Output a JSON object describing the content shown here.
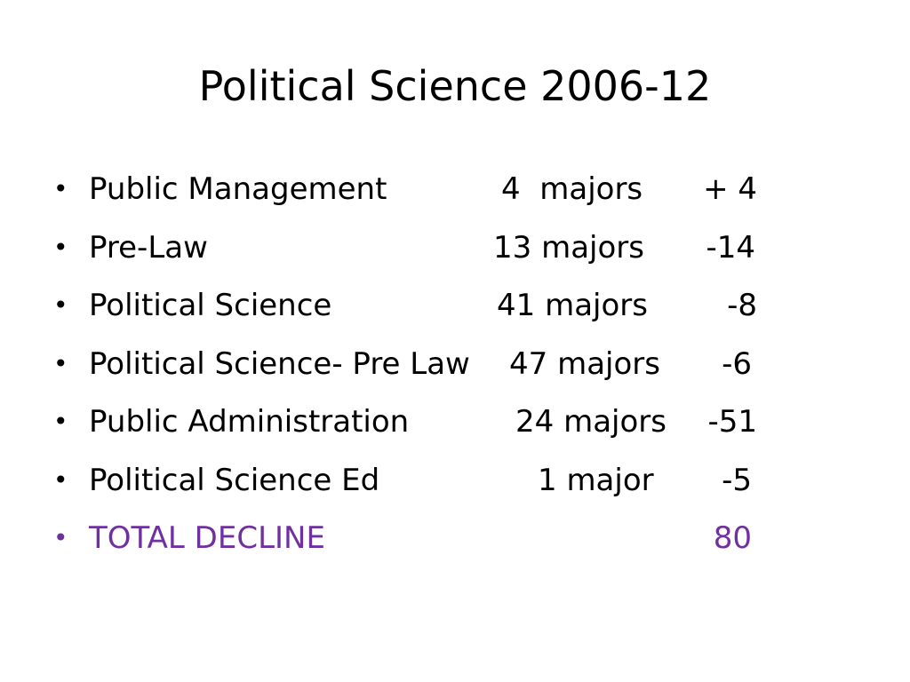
{
  "slide": {
    "title": "Political Science 2006-12",
    "bullet_symbol": "•",
    "rows": [
      {
        "name": "Public Management",
        "count": "4  majors",
        "change": "+ 4"
      },
      {
        "name": "Pre-Law",
        "count": "13 majors",
        "change": "-14"
      },
      {
        "name": "Political Science",
        "count": "41 majors",
        "change": "-8"
      },
      {
        "name": "Political Science- Pre Law",
        "count": "47 majors",
        "change": "-6"
      },
      {
        "name": "Public Administration",
        "count": "24 majors",
        "change": "-51"
      },
      {
        "name": "Political Science Ed",
        "count": "1 major",
        "change": "-5"
      }
    ],
    "total": {
      "name": "TOTAL DECLINE",
      "value": "80"
    },
    "colors": {
      "text": "#000000",
      "total": "#7030a0",
      "background": "#ffffff"
    }
  }
}
